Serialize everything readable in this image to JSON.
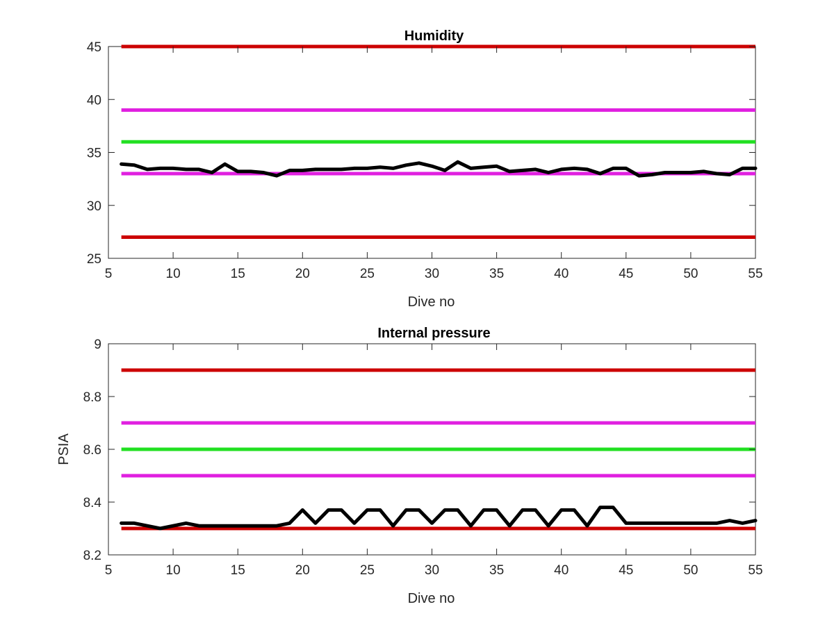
{
  "chart_data": [
    {
      "type": "line",
      "title": "Humidity",
      "xlabel": "Dive no",
      "ylabel": "",
      "xlim": [
        5,
        55
      ],
      "ylim": [
        25,
        45
      ],
      "xticks": [
        "5",
        "10",
        "15",
        "20",
        "25",
        "30",
        "35",
        "40",
        "45",
        "50",
        "55"
      ],
      "yticks": [
        "25",
        "30",
        "35",
        "40",
        "45"
      ],
      "grid": false,
      "reference_lines": [
        {
          "y": 45,
          "color": "#cc0000"
        },
        {
          "y": 39,
          "color": "#e020e0"
        },
        {
          "y": 36,
          "color": "#22e022"
        },
        {
          "y": 33,
          "color": "#e020e0"
        },
        {
          "y": 27,
          "color": "#cc0000"
        }
      ],
      "series": [
        {
          "color": "#000000",
          "x": [
            6,
            7,
            8,
            9,
            10,
            11,
            12,
            13,
            14,
            15,
            16,
            17,
            18,
            19,
            20,
            21,
            22,
            23,
            24,
            25,
            26,
            27,
            28,
            29,
            30,
            31,
            32,
            33,
            34,
            35,
            36,
            37,
            38,
            39,
            40,
            41,
            42,
            43,
            44,
            45,
            46,
            47,
            48,
            49,
            50,
            51,
            52,
            53,
            54,
            55
          ],
          "values": [
            33.9,
            33.8,
            33.4,
            33.5,
            33.5,
            33.4,
            33.4,
            33.1,
            33.9,
            33.2,
            33.2,
            33.1,
            32.8,
            33.3,
            33.3,
            33.4,
            33.4,
            33.4,
            33.5,
            33.5,
            33.6,
            33.5,
            33.8,
            34.0,
            33.7,
            33.3,
            34.1,
            33.5,
            33.6,
            33.7,
            33.2,
            33.3,
            33.4,
            33.1,
            33.4,
            33.5,
            33.4,
            33.0,
            33.5,
            33.5,
            32.8,
            32.9,
            33.1,
            33.1,
            33.1,
            33.2,
            33.0,
            32.9,
            33.5,
            33.5
          ]
        }
      ]
    },
    {
      "type": "line",
      "title": "Internal pressure",
      "xlabel": "Dive no",
      "ylabel": "PSIA",
      "xlim": [
        5,
        55
      ],
      "ylim": [
        8.2,
        9
      ],
      "xticks": [
        "5",
        "10",
        "15",
        "20",
        "25",
        "30",
        "35",
        "40",
        "45",
        "50",
        "55"
      ],
      "yticks": [
        "8.2",
        "8.4",
        "8.6",
        "8.8",
        "9"
      ],
      "grid": false,
      "reference_lines": [
        {
          "y": 8.9,
          "color": "#cc0000"
        },
        {
          "y": 8.7,
          "color": "#e020e0"
        },
        {
          "y": 8.6,
          "color": "#22e022"
        },
        {
          "y": 8.5,
          "color": "#e020e0"
        },
        {
          "y": 8.3,
          "color": "#cc0000"
        }
      ],
      "series": [
        {
          "color": "#000000",
          "x": [
            6,
            7,
            8,
            9,
            10,
            11,
            12,
            13,
            14,
            15,
            16,
            17,
            18,
            19,
            20,
            21,
            22,
            23,
            24,
            25,
            26,
            27,
            28,
            29,
            30,
            31,
            32,
            33,
            34,
            35,
            36,
            37,
            38,
            39,
            40,
            41,
            42,
            43,
            44,
            45,
            46,
            47,
            48,
            49,
            50,
            51,
            52,
            53,
            54,
            55
          ],
          "values": [
            8.32,
            8.32,
            8.31,
            8.3,
            8.31,
            8.32,
            8.31,
            8.31,
            8.31,
            8.31,
            8.31,
            8.31,
            8.31,
            8.32,
            8.37,
            8.32,
            8.37,
            8.37,
            8.32,
            8.37,
            8.37,
            8.31,
            8.37,
            8.37,
            8.32,
            8.37,
            8.37,
            8.31,
            8.37,
            8.37,
            8.31,
            8.37,
            8.37,
            8.31,
            8.37,
            8.37,
            8.31,
            8.38,
            8.38,
            8.32,
            8.32,
            8.32,
            8.32,
            8.32,
            8.32,
            8.32,
            8.32,
            8.33,
            8.32,
            8.33
          ]
        }
      ]
    }
  ]
}
